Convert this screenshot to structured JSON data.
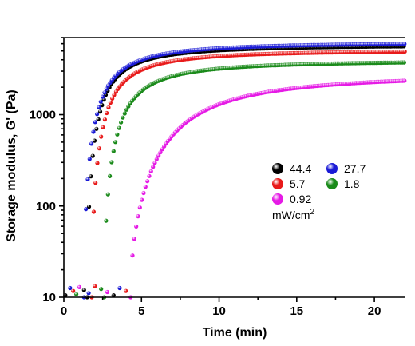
{
  "chart_data": {
    "type": "scatter",
    "title": "",
    "xlabel": "Time (min)",
    "ylabel": "Storage modulus, G' (Pa)",
    "xlim": [
      0,
      22
    ],
    "ylim": [
      10,
      7000
    ],
    "yscale": "log",
    "x_ticks": [
      0,
      5,
      10,
      15,
      20
    ],
    "x_tick_labels": [
      "0",
      "5",
      "10",
      "15",
      "20"
    ],
    "y_ticks": [
      10,
      100,
      1000
    ],
    "y_tick_labels": [
      "10",
      "100",
      "1000"
    ],
    "grid": false,
    "legend_placement": "center-right",
    "legend_title": "mW/cm",
    "legend_title_sup": "2",
    "series": [
      {
        "name": "44.4",
        "color": "#000000",
        "onset": 1.5,
        "start_value": 10,
        "plateau": 5900,
        "half_time": 2.6,
        "shape": 1.3
      },
      {
        "name": "27.7",
        "color": "#1a1ad6",
        "onset": 1.3,
        "start_value": 10,
        "plateau": 6300,
        "half_time": 2.5,
        "shape": 1.3
      },
      {
        "name": "5.7",
        "color": "#e81a1a",
        "onset": 1.8,
        "start_value": 10,
        "plateau": 5200,
        "half_time": 3.0,
        "shape": 1.3
      },
      {
        "name": "1.8",
        "color": "#1a8a1a",
        "onset": 2.6,
        "start_value": 10,
        "plateau": 4000,
        "half_time": 4.0,
        "shape": 1.3
      },
      {
        "name": "0.92",
        "color": "#e51ae5",
        "onset": 4.3,
        "start_value": 10,
        "plateau": 2900,
        "half_time": 8.0,
        "shape": 1.4
      }
    ],
    "noise_points_x": [
      0.1,
      0.4,
      0.6,
      0.8,
      1.0,
      1.3,
      1.6,
      2.0,
      2.4,
      2.8,
      3.2,
      3.6,
      4.0
    ]
  }
}
